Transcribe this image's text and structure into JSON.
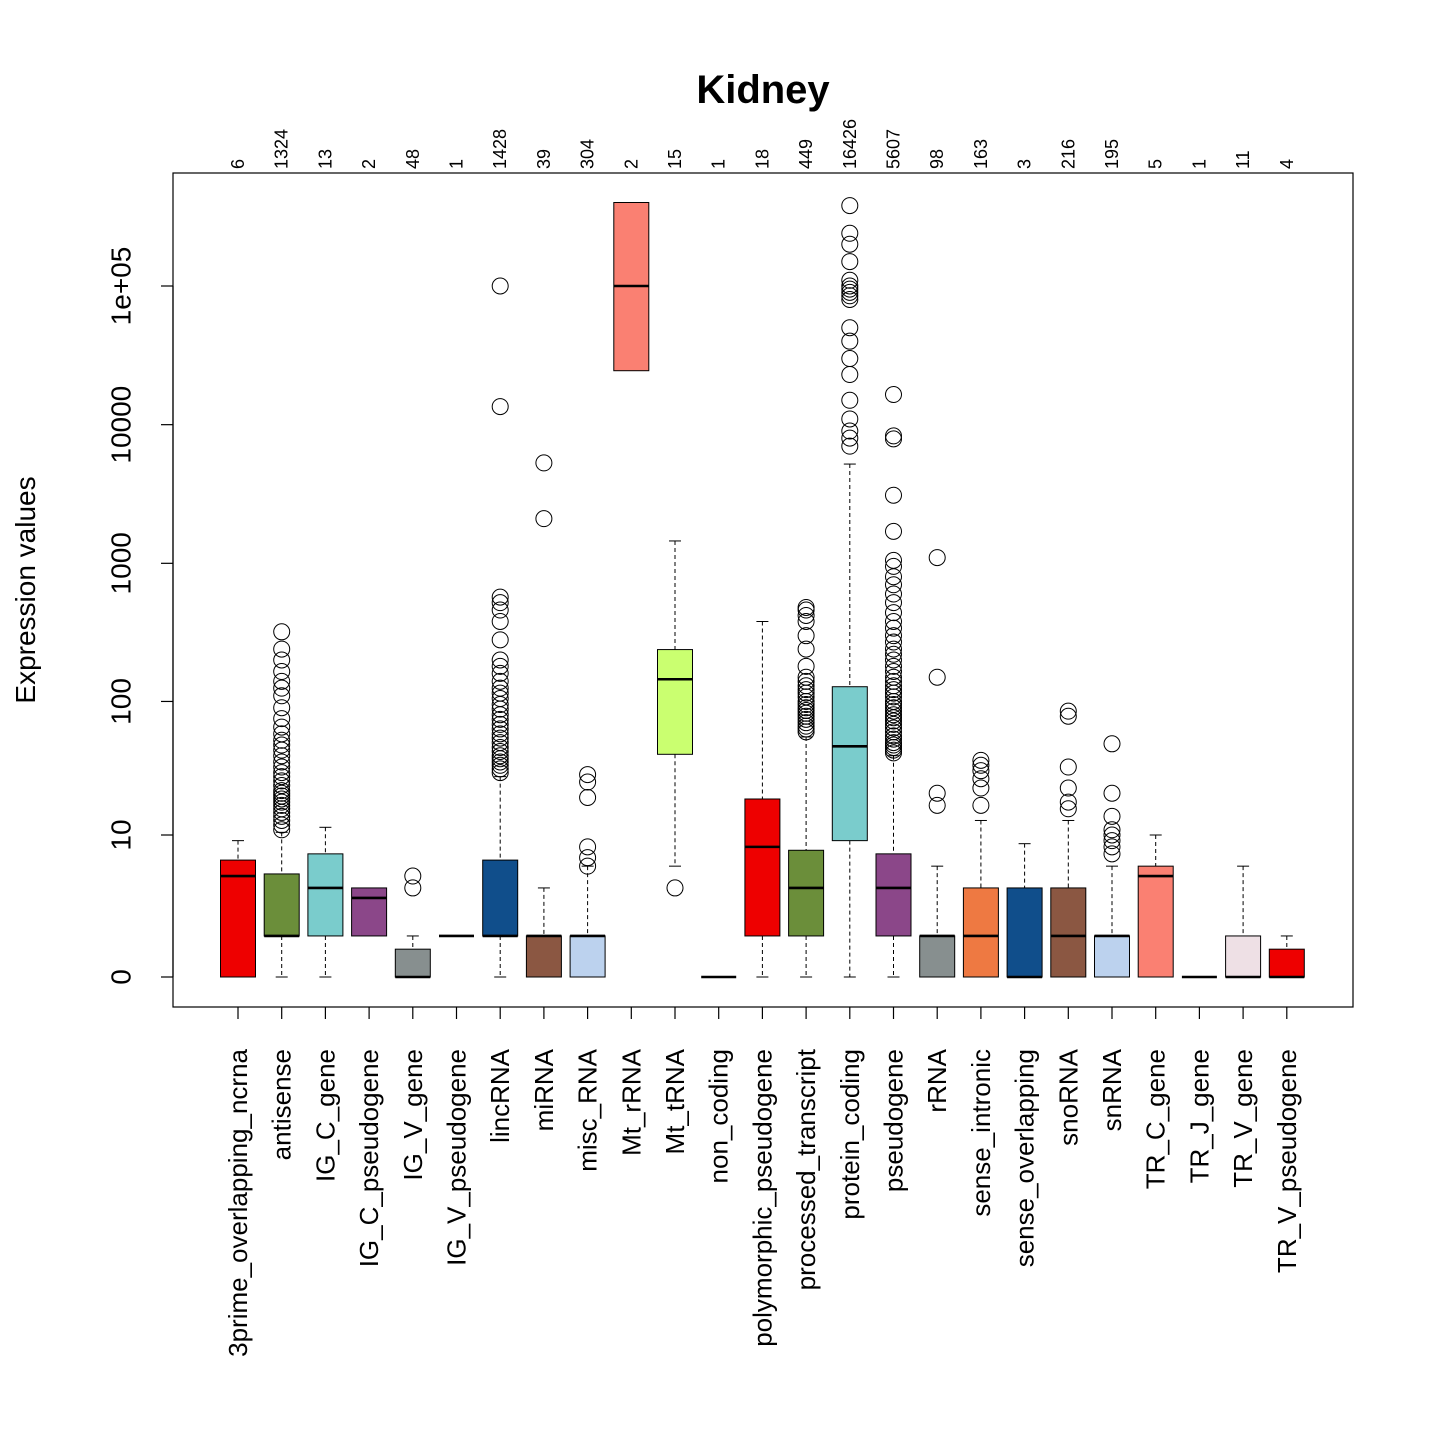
{
  "chart_data": {
    "type": "boxplot",
    "title": "Kidney",
    "ylabel": "Expression values",
    "xlabel": "",
    "y_scale": "log1p",
    "ylim": [
      0,
      600000
    ],
    "yticks": [
      {
        "value": 0,
        "label": "0"
      },
      {
        "value": 10,
        "label": "10"
      },
      {
        "value": 100,
        "label": "100"
      },
      {
        "value": 1000,
        "label": "1000"
      },
      {
        "value": 10000,
        "label": "10000"
      },
      {
        "value": 100000,
        "label": "1e+05"
      }
    ],
    "grid": false,
    "categories": [
      "3prime_overlapping_ncrna",
      "antisense",
      "IG_C_gene",
      "IG_C_pseudogene",
      "IG_V_gene",
      "IG_V_pseudogene",
      "lincRNA",
      "miRNA",
      "misc_RNA",
      "Mt_rRNA",
      "Mt_tRNA",
      "non_coding",
      "polymorphic_pseudogene",
      "processed_transcript",
      "protein_coding",
      "pseudogene",
      "rRNA",
      "sense_intronic",
      "sense_overlapping",
      "snoRNA",
      "snRNA",
      "TR_C_gene",
      "TR_J_gene",
      "TR_V_gene",
      "TR_V_pseudogene"
    ],
    "counts": [
      "6",
      "1324",
      "13",
      "2",
      "48",
      "1",
      "1428",
      "39",
      "304",
      "2",
      "15",
      "1",
      "18",
      "449",
      "16426",
      "5607",
      "98",
      "163",
      "3",
      "216",
      "195",
      "5",
      "1",
      "11",
      "4"
    ],
    "boxes": [
      {
        "color": "#EE0000",
        "whisker_low": 0,
        "q1": 0,
        "median": 4.5,
        "q3": 6.2,
        "whisker_high": 9,
        "outliers": []
      },
      {
        "color": "#6B8E3A",
        "whisker_low": 0,
        "q1": 1,
        "median": 1,
        "q3": 4.7,
        "whisker_high": 10.5,
        "outliers": [
          11,
          12,
          13,
          14,
          15,
          16,
          17,
          18,
          19,
          20,
          21,
          22,
          24,
          26,
          28,
          30,
          33,
          36,
          40,
          44,
          48,
          52,
          58,
          65,
          75,
          90,
          110,
          125,
          140,
          165,
          200,
          240,
          320
        ]
      },
      {
        "color": "#7ACCCC",
        "whisker_low": 0,
        "q1": 1,
        "median": 3.5,
        "q3": 7,
        "whisker_high": 11.5,
        "outliers": []
      },
      {
        "color": "#8B4789",
        "whisker_low": 1,
        "q1": 1,
        "median": 2.8,
        "q3": 3.5,
        "whisker_high": 3.5,
        "outliers": []
      },
      {
        "color": "#878F8F",
        "whisker_low": 0,
        "q1": 0,
        "median": 0,
        "q3": 0.6,
        "whisker_high": 1,
        "outliers": [
          3.5,
          4.5
        ]
      },
      {
        "color": "#111111",
        "whisker_low": 1,
        "q1": 1,
        "median": 1,
        "q3": 1,
        "whisker_high": 1,
        "outliers": []
      },
      {
        "color": "#104E8B",
        "whisker_low": 0,
        "q1": 1,
        "median": 1,
        "q3": 6.2,
        "whisker_high": 28,
        "outliers": [
          30,
          32,
          34,
          36,
          38,
          40,
          43,
          46,
          50,
          54,
          58,
          63,
          68,
          74,
          80,
          88,
          95,
          105,
          115,
          125,
          140,
          160,
          180,
          200,
          280,
          380,
          460,
          520,
          570,
          13500,
          100000
        ]
      },
      {
        "color": "#8B5742",
        "whisker_low": 0,
        "q1": 0,
        "median": 1,
        "q3": 1,
        "whisker_high": 3.5,
        "outliers": [
          2100,
          5300
        ]
      },
      {
        "color": "#BCD2EE",
        "whisker_low": 0,
        "q1": 0,
        "median": 1,
        "q3": 1,
        "whisker_high": 5.5,
        "outliers": [
          5.5,
          6.5,
          8,
          19.5,
          25.5,
          29
        ]
      },
      {
        "color": "#FA8072",
        "whisker_low": 24500,
        "q1": 24500,
        "median": 100000,
        "q3": 400000,
        "whisker_high": 400000,
        "outliers": []
      },
      {
        "color": "#CAFF70",
        "whisker_low": 5.5,
        "q1": 41,
        "median": 145,
        "q3": 238,
        "whisker_high": 1450,
        "outliers": [
          3.5
        ]
      },
      {
        "color": "#111111",
        "whisker_low": 0,
        "q1": 0,
        "median": 0,
        "q3": 0,
        "whisker_high": 0,
        "outliers": []
      },
      {
        "color": "#EE0000",
        "whisker_low": 0,
        "q1": 1,
        "median": 8,
        "q3": 19,
        "whisker_high": 380,
        "outliers": []
      },
      {
        "color": "#6B8E3A",
        "whisker_low": 0,
        "q1": 1,
        "median": 3.5,
        "q3": 7.5,
        "whisker_high": 55,
        "outliers": [
          60,
          63,
          66,
          70,
          74,
          78,
          82,
          86,
          90,
          95,
          100,
          108,
          115,
          122,
          130,
          140,
          150,
          180,
          240,
          300,
          380,
          420,
          460,
          480
        ]
      },
      {
        "color": "#7ACCCC",
        "whisker_low": 0,
        "q1": 9,
        "median": 47,
        "q3": 128,
        "whisker_high": 5200,
        "outliers": [
          7000,
          8000,
          9000,
          11000,
          15000,
          23000,
          30000,
          40000,
          50000,
          80000,
          85000,
          90000,
          95000,
          100000,
          110000,
          150000,
          200000,
          240000,
          380000
        ]
      },
      {
        "color": "#8B4789",
        "whisker_low": 0,
        "q1": 1,
        "median": 3.5,
        "q3": 7,
        "whisker_high": 40,
        "outliers": [
          42,
          44,
          46,
          48,
          50,
          53,
          56,
          60,
          64,
          68,
          72,
          76,
          80,
          85,
          90,
          95,
          100,
          108,
          115,
          122,
          130,
          140,
          150,
          165,
          180,
          200,
          220,
          240,
          270,
          300,
          340,
          380,
          440,
          520,
          600,
          700,
          800,
          950,
          1050,
          1700,
          3100,
          7900,
          8300,
          16500
        ]
      },
      {
        "color": "#878F8F",
        "whisker_low": 0,
        "q1": 0,
        "median": 1,
        "q3": 1,
        "whisker_high": 5.5,
        "outliers": [
          17,
          21,
          150,
          1100
        ]
      },
      {
        "color": "#EE7942",
        "whisker_low": 0,
        "q1": 0,
        "median": 1,
        "q3": 3.5,
        "whisker_high": 13,
        "outliers": [
          17,
          23,
          27,
          31,
          34,
          37
        ]
      },
      {
        "color": "#104E8B",
        "whisker_low": 0,
        "q1": 0,
        "median": 0,
        "q3": 3.5,
        "whisker_high": 8.5,
        "outliers": []
      },
      {
        "color": "#8B5742",
        "whisker_low": 0,
        "q1": 0,
        "median": 1,
        "q3": 3.5,
        "whisker_high": 13,
        "outliers": [
          16,
          18,
          23,
          33,
          78,
          85
        ]
      },
      {
        "color": "#BCD2EE",
        "whisker_low": 0,
        "q1": 0,
        "median": 1,
        "q3": 1,
        "whisker_high": 5.5,
        "outliers": [
          7,
          8,
          9,
          10,
          11,
          14,
          21,
          49
        ]
      },
      {
        "color": "#FA8072",
        "whisker_low": 0,
        "q1": 0,
        "median": 4.5,
        "q3": 5.5,
        "whisker_high": 10,
        "outliers": []
      },
      {
        "color": "#111111",
        "whisker_low": 0,
        "q1": 0,
        "median": 0,
        "q3": 0,
        "whisker_high": 0,
        "outliers": []
      },
      {
        "color": "#EEE0E5",
        "whisker_low": 0,
        "q1": 0,
        "median": 0,
        "q3": 1,
        "whisker_high": 5.5,
        "outliers": []
      },
      {
        "color": "#EE0000",
        "whisker_low": 0,
        "q1": 0,
        "median": 0,
        "q3": 0.6,
        "whisker_high": 1,
        "outliers": []
      }
    ]
  }
}
